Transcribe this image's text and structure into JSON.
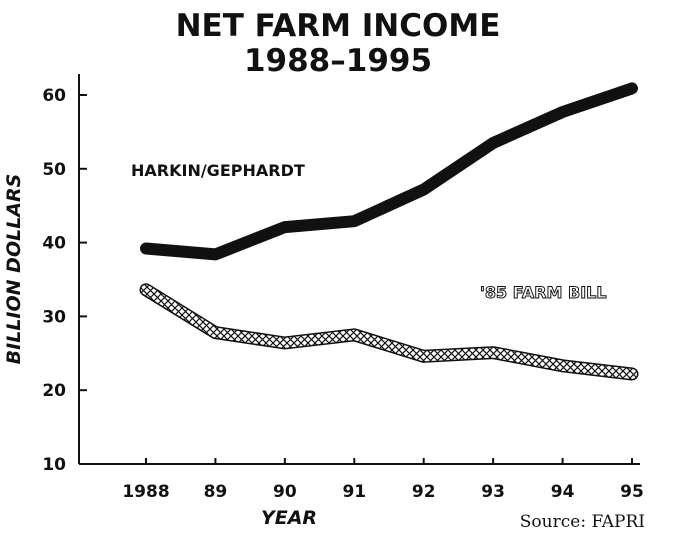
{
  "chart_data": {
    "type": "line",
    "title": [
      "NET FARM INCOME",
      "1988–1995"
    ],
    "xlabel": "YEAR",
    "ylabel": "BILLION DOLLARS",
    "x_tick_labels": [
      "1988",
      "89",
      "90",
      "91",
      "92",
      "93",
      "94",
      "95"
    ],
    "x": [
      1988,
      1989,
      1990,
      1991,
      1992,
      1993,
      1994,
      1995
    ],
    "ylim": [
      10,
      62
    ],
    "y_ticks": [
      10,
      20,
      30,
      40,
      50,
      60
    ],
    "grid": false,
    "series": [
      {
        "name": "HARKIN/GEPHARDT",
        "style": "solid-thick",
        "color": "#111111",
        "values": [
          39.2,
          38.4,
          42.1,
          42.9,
          47.2,
          53.5,
          57.7,
          60.9
        ]
      },
      {
        "name": "'85 FARM BILL",
        "style": "crosshatch",
        "color": "#111111",
        "values": [
          33.6,
          27.8,
          26.4,
          27.5,
          24.6,
          25.1,
          23.3,
          22.2
        ]
      }
    ],
    "source": "Source: FAPRI"
  }
}
